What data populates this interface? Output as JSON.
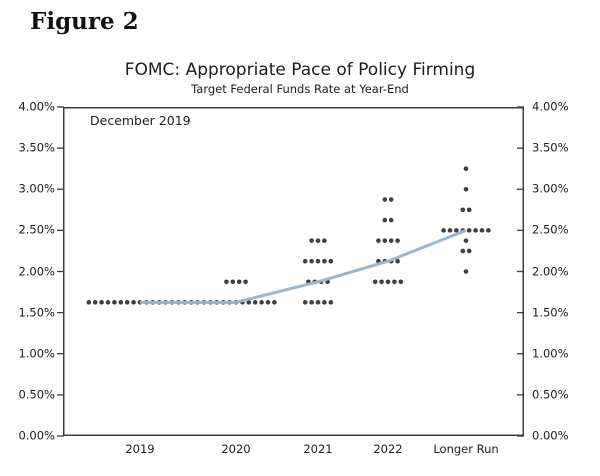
{
  "page": {
    "figure_label": "Figure 2"
  },
  "chart_data": {
    "type": "scatter",
    "subtype": "fomc-dot-plot",
    "title": "FOMC: Appropriate Pace of Policy Firming",
    "subtitle": "Target Federal Funds Rate at Year-End",
    "annotation": "December 2019",
    "categories": [
      "2019",
      "2020",
      "2021",
      "2022",
      "Longer Run"
    ],
    "ylim": [
      0,
      4
    ],
    "y_tick_labels": [
      "0.00%",
      "0.50%",
      "1.00%",
      "1.50%",
      "2.00%",
      "2.50%",
      "3.00%",
      "3.50%",
      "4.00%"
    ],
    "y_tick_values": [
      0,
      0.5,
      1.0,
      1.5,
      2.0,
      2.5,
      3.0,
      3.5,
      4.0
    ],
    "grid": false,
    "legend": "none",
    "dot_distributions": [
      {
        "category": "2019",
        "dots": [
          {
            "rate": 1.625,
            "count": 17
          }
        ]
      },
      {
        "category": "2020",
        "dots": [
          {
            "rate": 1.875,
            "count": 4
          },
          {
            "rate": 1.625,
            "count": 13
          }
        ]
      },
      {
        "category": "2021",
        "dots": [
          {
            "rate": 2.375,
            "count": 3
          },
          {
            "rate": 2.125,
            "count": 5
          },
          {
            "rate": 1.875,
            "count": 4
          },
          {
            "rate": 1.625,
            "count": 5
          }
        ]
      },
      {
        "category": "2022",
        "dots": [
          {
            "rate": 2.875,
            "count": 2
          },
          {
            "rate": 2.625,
            "count": 2
          },
          {
            "rate": 2.375,
            "count": 4
          },
          {
            "rate": 2.125,
            "count": 4
          },
          {
            "rate": 1.875,
            "count": 5
          }
        ]
      },
      {
        "category": "Longer Run",
        "dots": [
          {
            "rate": 3.25,
            "count": 1
          },
          {
            "rate": 3.0,
            "count": 1
          },
          {
            "rate": 2.75,
            "count": 2
          },
          {
            "rate": 2.5,
            "count": 8
          },
          {
            "rate": 2.375,
            "count": 1
          },
          {
            "rate": 2.25,
            "count": 2
          },
          {
            "rate": 2.0,
            "count": 1
          }
        ]
      }
    ],
    "median_series": {
      "name": "Median path",
      "values": [
        1.625,
        1.625,
        1.875,
        2.125,
        2.5
      ]
    },
    "colors": {
      "dot": "#3f3f3f",
      "median_line": "#9db6ca",
      "axis": "#3c3c3c",
      "text": "#1c1c1c"
    }
  }
}
